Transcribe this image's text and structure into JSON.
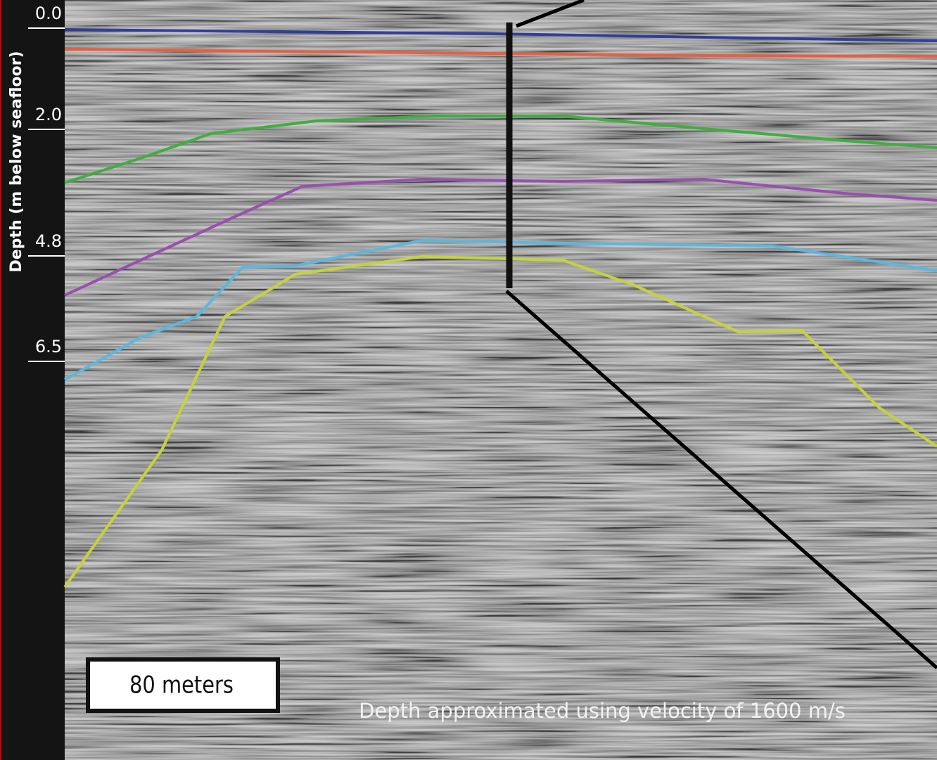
{
  "axis": {
    "label": "Depth (m below seafloor)",
    "ticks": [
      "0.0",
      "2.0",
      "4.8",
      "6.5"
    ]
  },
  "scale_bar": {
    "label": "80 meters"
  },
  "note": "Depth approximated using velocity of 1600 m/s"
}
